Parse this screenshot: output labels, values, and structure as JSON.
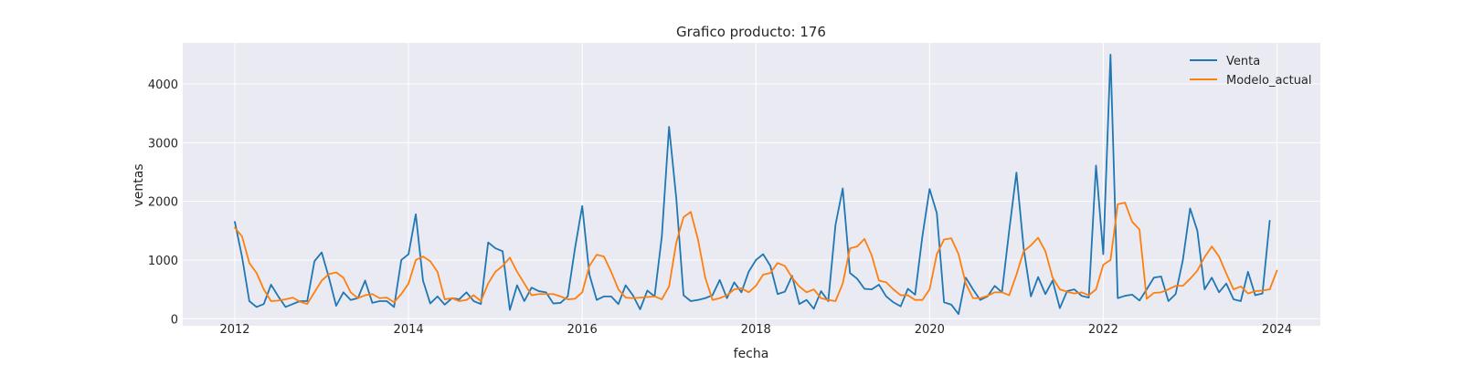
{
  "chart_data": {
    "type": "line",
    "title": "Grafico producto: 176",
    "xlabel": "fecha",
    "ylabel": "ventas",
    "xlim": [
      2011.4,
      2024.5
    ],
    "ylim": [
      -120,
      4700
    ],
    "x_ticks": [
      "2012",
      "2014",
      "2016",
      "2018",
      "2020",
      "2022",
      "2024"
    ],
    "y_ticks": [
      "0",
      "1000",
      "2000",
      "3000",
      "4000"
    ],
    "grid": true,
    "legend_position": "top-right",
    "x_start_year": 2012,
    "series": [
      {
        "name": "Venta",
        "color": "#1f77b4",
        "values": [
          1650,
          1050,
          300,
          200,
          250,
          580,
          380,
          200,
          250,
          300,
          300,
          980,
          1130,
          700,
          220,
          450,
          320,
          350,
          650,
          270,
          300,
          300,
          200,
          1000,
          1100,
          1780,
          650,
          260,
          380,
          240,
          350,
          330,
          450,
          300,
          250,
          1300,
          1200,
          1150,
          150,
          570,
          300,
          530,
          470,
          450,
          260,
          270,
          380,
          1200,
          1920,
          750,
          320,
          380,
          380,
          250,
          570,
          400,
          160,
          480,
          380,
          1400,
          3270,
          2050,
          400,
          300,
          320,
          350,
          400,
          660,
          350,
          620,
          450,
          800,
          1000,
          1100,
          900,
          420,
          460,
          730,
          250,
          320,
          170,
          470,
          300,
          1600,
          2220,
          780,
          680,
          510,
          500,
          580,
          380,
          280,
          210,
          510,
          410,
          1400,
          2210,
          1800,
          280,
          240,
          80,
          700,
          500,
          320,
          380,
          560,
          450,
          1500,
          2490,
          1200,
          380,
          710,
          420,
          650,
          180,
          470,
          500,
          390,
          360,
          2610,
          1100,
          4500,
          350,
          390,
          410,
          310,
          500,
          700,
          720,
          300,
          420,
          1000,
          1880,
          1500,
          500,
          700,
          450,
          600,
          330,
          300,
          800,
          400,
          430,
          1670
        ]
      },
      {
        "name": "Modelo_actual",
        "color": "#ff7f0e",
        "values": [
          1550,
          1400,
          950,
          780,
          500,
          300,
          310,
          330,
          360,
          290,
          250,
          450,
          650,
          760,
          790,
          700,
          450,
          350,
          400,
          420,
          350,
          360,
          280,
          420,
          600,
          1000,
          1060,
          980,
          800,
          330,
          350,
          300,
          320,
          400,
          300,
          600,
          800,
          900,
          1040,
          800,
          600,
          400,
          420,
          420,
          420,
          380,
          330,
          340,
          450,
          900,
          1090,
          1060,
          800,
          500,
          360,
          350,
          360,
          370,
          380,
          330,
          550,
          1300,
          1730,
          1820,
          1350,
          700,
          320,
          350,
          400,
          500,
          520,
          450,
          560,
          750,
          780,
          950,
          900,
          700,
          550,
          450,
          500,
          350,
          320,
          300,
          600,
          1200,
          1230,
          1360,
          1080,
          650,
          620,
          500,
          400,
          400,
          320,
          320,
          500,
          1100,
          1350,
          1370,
          1100,
          600,
          350,
          350,
          390,
          450,
          450,
          400,
          750,
          1150,
          1250,
          1380,
          1150,
          700,
          500,
          460,
          430,
          450,
          400,
          500,
          920,
          1000,
          1950,
          1980,
          1650,
          1520,
          340,
          440,
          450,
          500,
          560,
          560,
          680,
          820,
          1050,
          1230,
          1060,
          770,
          500,
          550,
          430,
          470,
          480,
          500,
          820
        ]
      }
    ]
  }
}
